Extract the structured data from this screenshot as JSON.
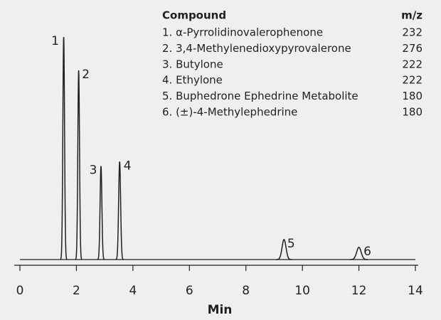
{
  "chart_data": {
    "type": "chromatogram",
    "xlabel": "Min",
    "xlim": [
      0,
      14
    ],
    "xticks": [
      0,
      2,
      4,
      6,
      8,
      10,
      12,
      14
    ],
    "ylim": [
      0,
      100
    ],
    "color": "#231f20",
    "peaks": [
      {
        "label": "1",
        "x": 1.55,
        "height": 100,
        "width": 0.03
      },
      {
        "label": "2",
        "x": 2.08,
        "height": 85,
        "width": 0.03
      },
      {
        "label": "3",
        "x": 2.87,
        "height": 42,
        "width": 0.032
      },
      {
        "label": "4",
        "x": 3.53,
        "height": 44,
        "width": 0.035
      },
      {
        "label": "5",
        "x": 9.35,
        "height": 9,
        "width": 0.07
      },
      {
        "label": "6",
        "x": 12.0,
        "height": 5.5,
        "width": 0.08
      }
    ],
    "legend": {
      "header": [
        "Compound",
        "m/z"
      ],
      "rows": [
        [
          "1. α-Pyrrolidinovalerophenone",
          232
        ],
        [
          "2. 3,4-Methylenedioxypyrovalerone",
          276
        ],
        [
          "3. Butylone",
          222
        ],
        [
          "4. Ethylone",
          222
        ],
        [
          "5. Buphedrone Ephedrine Metabolite",
          180
        ],
        [
          "6. (±)-4-Methylephedrine",
          180
        ]
      ]
    }
  }
}
